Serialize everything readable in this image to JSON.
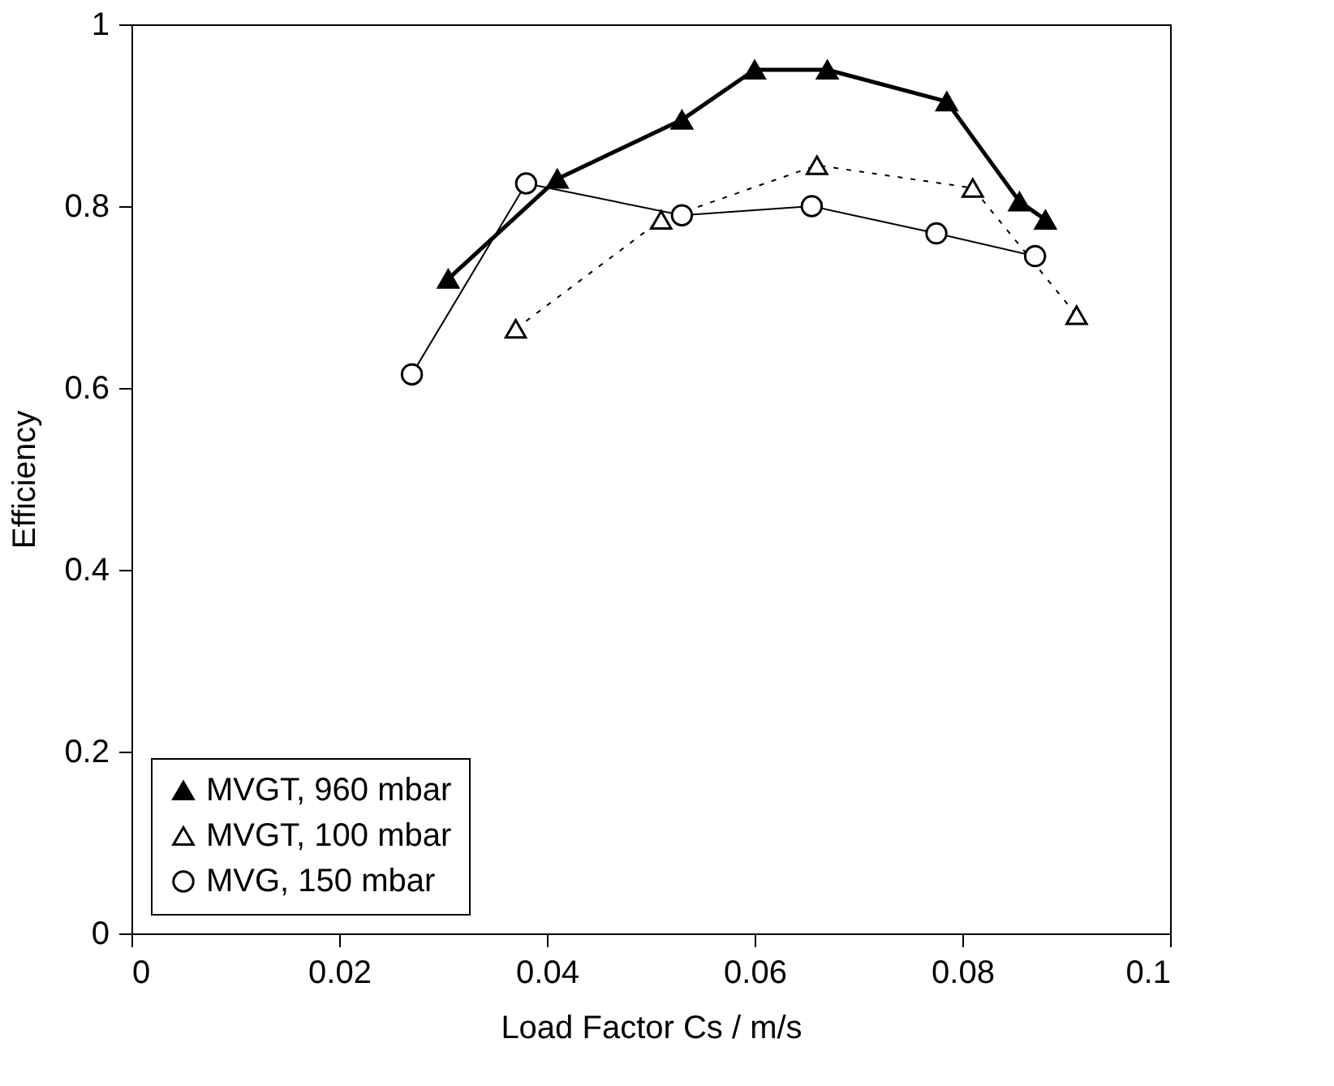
{
  "chart_data": {
    "type": "line",
    "xlabel": "Load Factor Cs / m/s",
    "ylabel": "Efficiency",
    "xlim": [
      0,
      0.1
    ],
    "xticks": [
      0,
      0.02,
      0.04,
      0.06,
      0.08,
      0.1
    ],
    "ylim": [
      0,
      1
    ],
    "yticks": [
      0,
      0.2,
      0.4,
      0.6,
      0.8,
      1
    ],
    "grid": false,
    "legend": "bottom left",
    "series": [
      {
        "name": "MVGT, 960 mbar",
        "color": "#000000",
        "marker": "triangle",
        "line_style": "solid",
        "x": [
          0.0305,
          0.041,
          0.053,
          0.06,
          0.067,
          0.0785,
          0.0855,
          0.088
        ],
        "values": [
          0.72,
          0.83,
          0.895,
          0.95,
          0.95,
          0.915,
          0.805,
          0.785
        ]
      },
      {
        "name": "MVGT, 100 mbar",
        "color": "#000000",
        "marker": "triangle",
        "line_style": "dashed",
        "x": [
          0.037,
          0.051,
          0.066,
          0.081,
          0.091
        ],
        "values": [
          0.665,
          0.785,
          0.845,
          0.82,
          0.68
        ]
      },
      {
        "name": "MVG, 150 mbar",
        "color": "#000000",
        "marker": "circle",
        "line_style": "solid",
        "x": [
          0.027,
          0.038,
          0.053,
          0.0655,
          0.0775,
          0.087
        ],
        "values": [
          0.615,
          0.825,
          0.79,
          0.8,
          0.77,
          0.745
        ]
      }
    ]
  }
}
